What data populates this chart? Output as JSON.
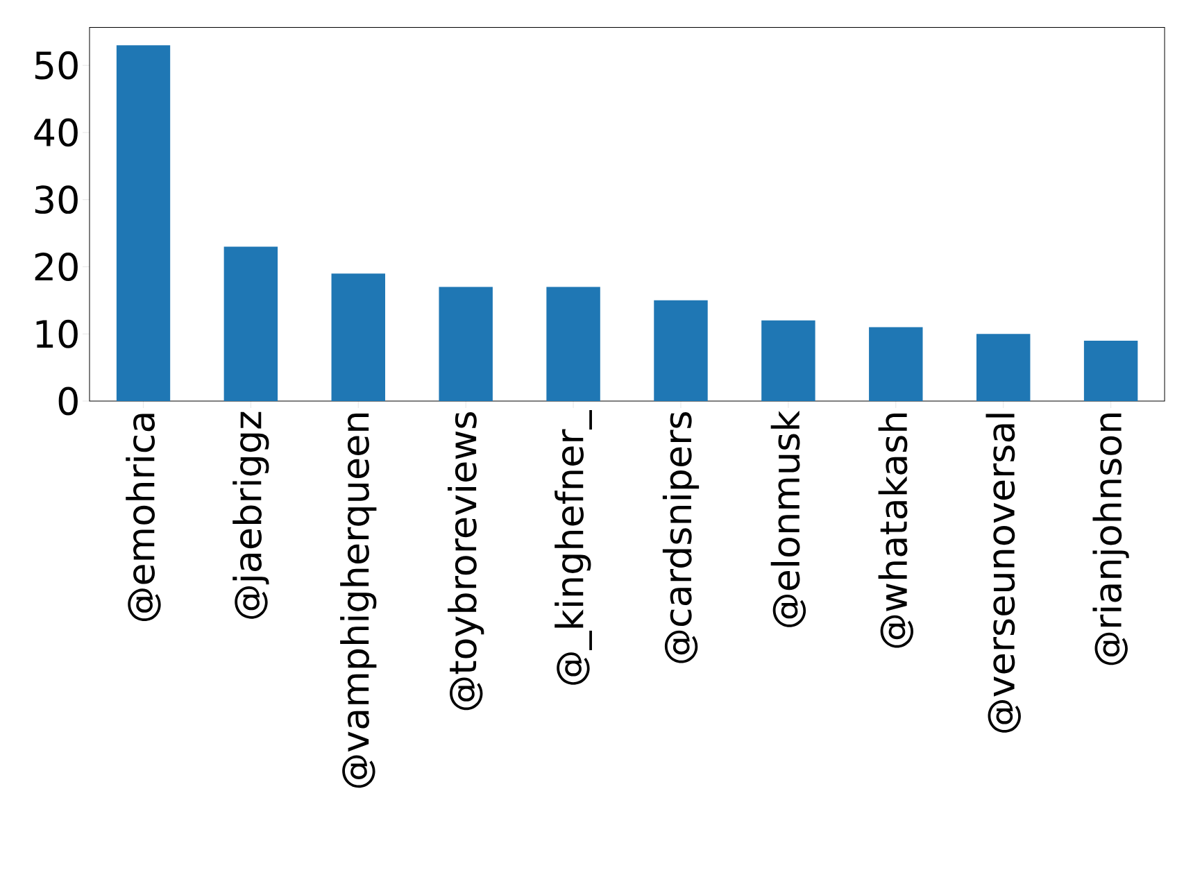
{
  "chart_data": {
    "type": "bar",
    "categories": [
      "@emohrica",
      "@jaebriggz",
      "@vamphigherqueen",
      "@toybroreviews",
      "@_kinghefner_",
      "@cardsnipers",
      "@elonmusk",
      "@whatakash",
      "@verseunoversal",
      "@rianjohnson"
    ],
    "values": [
      53,
      23,
      19,
      17,
      17,
      15,
      12,
      11,
      10,
      9
    ],
    "color": "#1f77b4",
    "ylim": [
      0,
      55.65
    ],
    "yticks": [
      0,
      10,
      20,
      30,
      40,
      50
    ],
    "grid": false
  }
}
